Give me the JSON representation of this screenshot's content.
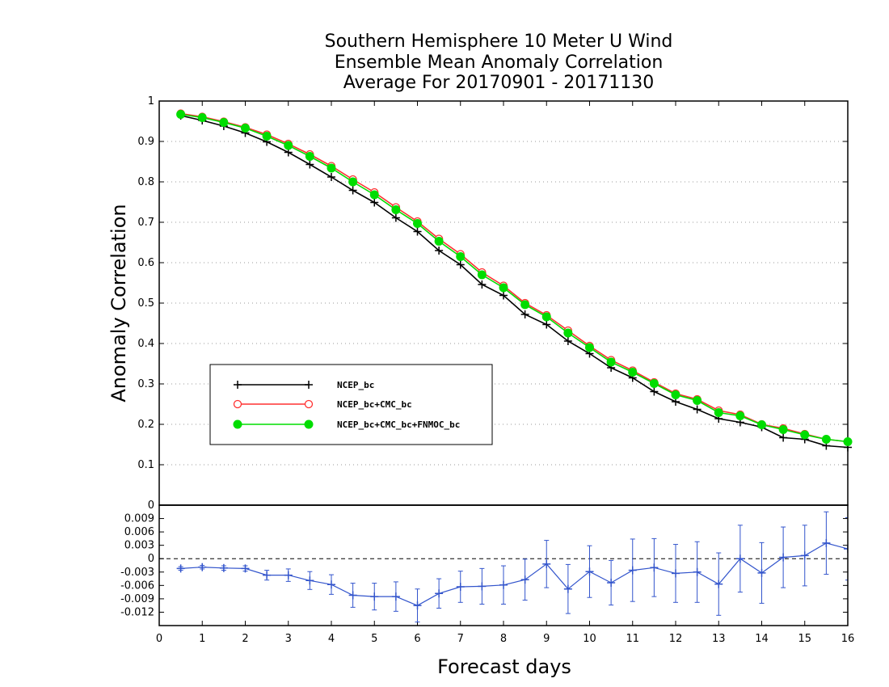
{
  "chart_data": [
    {
      "type": "line",
      "title": [
        "Southern Hemisphere 10 Meter U Wind",
        "Ensemble Mean Anomaly Correlation",
        "Average For 20170901 - 20171130"
      ],
      "ylabel": "Anomaly Correlation",
      "ylim": [
        0,
        1
      ],
      "yticks": [
        "0",
        "0.1",
        "0.2",
        "0.3",
        "0.4",
        "0.5",
        "0.6",
        "0.7",
        "0.8",
        "0.9",
        "1"
      ],
      "grid": true,
      "legend_position": "center-left",
      "x": [
        0.5,
        1,
        1.5,
        2,
        2.5,
        3,
        3.5,
        4,
        4.5,
        5,
        5.5,
        6,
        6.5,
        7,
        7.5,
        8,
        8.5,
        9,
        9.5,
        10,
        10.5,
        11,
        11.5,
        12,
        12.5,
        13,
        13.5,
        14,
        14.5,
        15,
        15.5,
        16
      ],
      "series": [
        {
          "name": "NCEP_bc",
          "color": "#000000",
          "marker": "plus",
          "values": [
            0.964,
            0.952,
            0.938,
            0.921,
            0.899,
            0.873,
            0.843,
            0.812,
            0.779,
            0.749,
            0.711,
            0.677,
            0.63,
            0.595,
            0.546,
            0.519,
            0.472,
            0.447,
            0.406,
            0.375,
            0.34,
            0.315,
            0.281,
            0.256,
            0.237,
            0.214,
            0.205,
            0.193,
            0.167,
            0.163,
            0.147,
            0.143
          ]
        },
        {
          "name": "NCEP_bc+CMC_bc",
          "color": "#ff3030",
          "marker": "open-circle",
          "values": [
            0.969,
            0.961,
            0.949,
            0.935,
            0.917,
            0.894,
            0.868,
            0.839,
            0.806,
            0.774,
            0.737,
            0.702,
            0.659,
            0.621,
            0.576,
            0.543,
            0.5,
            0.47,
            0.432,
            0.394,
            0.359,
            0.333,
            0.304,
            0.276,
            0.262,
            0.234,
            0.224,
            0.2,
            0.19,
            0.176,
            0.163,
            0.157
          ]
        },
        {
          "name": "NCEP_bc+CMC_bc+FNMOC_bc",
          "color": "#00dd00",
          "marker": "filled-circle",
          "values": [
            0.967,
            0.959,
            0.947,
            0.933,
            0.913,
            0.89,
            0.863,
            0.834,
            0.8,
            0.768,
            0.731,
            0.697,
            0.653,
            0.615,
            0.57,
            0.538,
            0.496,
            0.466,
            0.426,
            0.39,
            0.354,
            0.329,
            0.301,
            0.273,
            0.259,
            0.229,
            0.221,
            0.199,
            0.187,
            0.174,
            0.163,
            0.157
          ]
        }
      ]
    },
    {
      "type": "line",
      "xlabel": "Forecast days",
      "xlim": [
        0,
        16
      ],
      "xticks": [
        "0",
        "1",
        "2",
        "3",
        "4",
        "5",
        "6",
        "7",
        "8",
        "9",
        "10",
        "11",
        "12",
        "13",
        "14",
        "15",
        "16"
      ],
      "ylim": [
        -0.015,
        0.012
      ],
      "yticks": [
        "0.009",
        "0.006",
        "0.003",
        "0",
        "-0.003",
        "-0.006",
        "-0.009",
        "-0.012"
      ],
      "grid": false,
      "x": [
        0.5,
        1,
        1.5,
        2,
        2.5,
        3,
        3.5,
        4,
        4.5,
        5,
        5.5,
        6,
        6.5,
        7,
        7.5,
        8,
        8.5,
        9,
        9.5,
        10,
        10.5,
        11,
        11.5,
        12,
        12.5,
        13,
        13.5,
        14,
        14.5,
        15,
        15.5,
        16
      ],
      "series": [
        {
          "color": "#3355cc",
          "marker": "plus",
          "values": [
            -0.0022,
            -0.0019,
            -0.0021,
            -0.0022,
            -0.0037,
            -0.0037,
            -0.0049,
            -0.0058,
            -0.0082,
            -0.0085,
            -0.0085,
            -0.0105,
            -0.0078,
            -0.0063,
            -0.0062,
            -0.0059,
            -0.0047,
            -0.0012,
            -0.0068,
            -0.0029,
            -0.0054,
            -0.0026,
            -0.002,
            -0.0033,
            -0.003,
            -0.0057,
            0.0,
            -0.0032,
            0.0003,
            0.0007,
            0.0035,
            0.0022
          ],
          "error": [
            0.0004,
            0.0004,
            0.0005,
            0.0006,
            0.0011,
            0.0014,
            0.002,
            0.0022,
            0.0027,
            0.003,
            0.0033,
            0.0037,
            0.0033,
            0.0035,
            0.004,
            0.0043,
            0.0046,
            0.0053,
            0.0055,
            0.0058,
            0.005,
            0.007,
            0.0065,
            0.0065,
            0.0068,
            0.007,
            0.0075,
            0.0068,
            0.0068,
            0.0068,
            0.007,
            0.007
          ]
        }
      ]
    }
  ]
}
